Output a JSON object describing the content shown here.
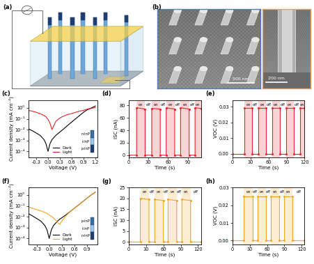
{
  "panel_a": {
    "label": "(a)"
  },
  "panel_b": {
    "label": "(b)",
    "scale_bars": [
      "500 nm",
      "200 nm"
    ]
  },
  "chart_data": [
    {
      "panel_label": "(c)",
      "type": "line",
      "log": "y",
      "xlabel": "Voltage (V)",
      "ylabel": "Current density (mA cm⁻²)",
      "x": [
        -0.5,
        -0.4,
        -0.3,
        -0.2,
        -0.1,
        -0.05,
        0.0,
        0.05,
        0.1,
        0.2,
        0.3,
        0.4,
        0.5,
        0.6,
        0.7,
        0.8,
        0.9,
        1.0,
        1.1,
        1.2
      ],
      "series": [
        {
          "name": "Dark",
          "color": "#000000",
          "values": [
            0.012,
            0.008,
            0.005,
            0.003,
            0.0012,
            0.0005,
            0.0001,
            0.0005,
            0.0012,
            0.003,
            0.006,
            0.012,
            0.025,
            0.05,
            0.1,
            0.2,
            0.4,
            0.7,
            1.0,
            1.5
          ]
        },
        {
          "name": "Light",
          "color": "#e8242a",
          "values": [
            0.6,
            0.5,
            0.4,
            0.3,
            0.2,
            0.15,
            0.09,
            0.04,
            0.01,
            0.06,
            0.12,
            0.18,
            0.25,
            0.3,
            0.4,
            0.5,
            0.6,
            0.8,
            0.9,
            1.1
          ]
        }
      ],
      "xlim": [
        -0.5,
        1.25
      ],
      "xticks": [
        -0.3,
        0.0,
        0.3,
        0.6,
        0.9,
        1.2
      ],
      "ylim": [
        3e-05,
        5
      ],
      "yticks": [
        {
          "value": 0.0001,
          "label": "10⁻⁴"
        },
        {
          "value": 0.001,
          "label": "10⁻³"
        },
        {
          "value": 0.01,
          "label": "10⁻²"
        },
        {
          "value": 0.1,
          "label": "10⁻¹"
        },
        {
          "value": 1,
          "label": "10⁰"
        }
      ],
      "legend": "lower center",
      "inset_labels": [
        "n-InP",
        "i-InP",
        "p-InP"
      ]
    },
    {
      "panel_label": "(d)",
      "type": "line",
      "marker": "circle",
      "color": "#e8242a",
      "xlabel": "Time (s)",
      "ylabel": "ISC (nA)",
      "x": [
        0,
        12,
        12,
        25,
        25,
        35,
        35,
        48,
        48,
        57,
        57,
        70,
        70,
        79,
        79,
        92,
        92,
        101,
        101,
        110
      ],
      "values": [
        0,
        0,
        76,
        74,
        0,
        0,
        75,
        74,
        0,
        0,
        76,
        74,
        0,
        0,
        76,
        74,
        0,
        0,
        76,
        75
      ],
      "on_intervals": [
        [
          12,
          25
        ],
        [
          35,
          48
        ],
        [
          57,
          70
        ],
        [
          79,
          92
        ],
        [
          101,
          110
        ]
      ],
      "on_label": "on",
      "off_label": "off",
      "xlim": [
        0,
        110
      ],
      "xticks": [
        0,
        30,
        60,
        90
      ],
      "ylim": [
        -3,
        88
      ],
      "yticks": [
        0,
        20,
        40,
        60,
        80
      ]
    },
    {
      "panel_label": "(e)",
      "type": "line",
      "marker": "circle",
      "color": "#e8242a",
      "xlabel": "Time (s)",
      "ylabel": "VOC (V)",
      "x": [
        0,
        20,
        20,
        33,
        33,
        43,
        43,
        56,
        56,
        66,
        66,
        79,
        79,
        89,
        89,
        102,
        102,
        112,
        112,
        120
      ],
      "values": [
        0,
        0,
        0.029,
        0.029,
        0,
        0,
        0.029,
        0.029,
        0,
        0,
        0.029,
        0.029,
        0,
        0,
        0.029,
        0.029,
        0,
        0,
        0.029,
        0.029
      ],
      "on_intervals": [
        [
          20,
          33
        ],
        [
          43,
          56
        ],
        [
          66,
          79
        ],
        [
          89,
          102
        ],
        [
          112,
          120
        ]
      ],
      "on_label": "on",
      "off_label": "off",
      "xlim": [
        0,
        120
      ],
      "xticks": [
        0,
        30,
        60,
        90,
        120
      ],
      "ylim": [
        -0.002,
        0.034
      ],
      "yticks": [
        {
          "value": 0.0,
          "label": "0.00"
        },
        0.01,
        0.02,
        0.03
      ]
    },
    {
      "panel_label": "(f)",
      "type": "line",
      "log": "y",
      "xlabel": "Voltage (V)",
      "ylabel": "Current density (mA cm⁻²)",
      "x": [
        -0.5,
        -0.4,
        -0.3,
        -0.2,
        -0.1,
        -0.05,
        0.0,
        0.05,
        0.1,
        0.15,
        0.2,
        0.25,
        0.3,
        0.4,
        0.5,
        0.6,
        0.7,
        0.8,
        0.9,
        1.0,
        1.1
      ],
      "series": [
        {
          "name": "Dark",
          "color": "#000000",
          "values": [
            0.02,
            0.012,
            0.007,
            0.004,
            0.0015,
            0.0006,
            0.0001,
            0.0006,
            0.0015,
            0.0025,
            0.004,
            0.006,
            0.008,
            0.015,
            0.03,
            0.06,
            0.12,
            0.25,
            0.5,
            1.0,
            1.8
          ]
        },
        {
          "name": "Light",
          "color": "#f5a623",
          "values": [
            0.08,
            0.06,
            0.045,
            0.035,
            0.025,
            0.02,
            0.015,
            0.011,
            0.008,
            0.005,
            0.003,
            0.002,
            0.004,
            0.012,
            0.03,
            0.06,
            0.12,
            0.25,
            0.5,
            1.0,
            1.8
          ]
        }
      ],
      "xlim": [
        -0.5,
        1.15
      ],
      "xticks": [
        -0.3,
        0.0,
        0.3,
        0.6,
        0.9
      ],
      "ylim": [
        3e-05,
        5
      ],
      "yticks": [
        {
          "value": 0.0001,
          "label": "10⁻⁴"
        },
        {
          "value": 0.001,
          "label": "10⁻³"
        },
        {
          "value": 0.01,
          "label": "10⁻²"
        },
        {
          "value": 0.1,
          "label": "10⁻¹"
        },
        {
          "value": 1,
          "label": "10⁰"
        }
      ],
      "legend": "lower center",
      "inset_labels": [
        "p-InP",
        "i-InP",
        "n-InP"
      ]
    },
    {
      "panel_label": "(g)",
      "type": "line",
      "marker": "circle",
      "color": "#f5a623",
      "xlabel": "Time (s)",
      "ylabel": "ISC (nA)",
      "x": [
        0,
        20,
        20,
        35,
        35,
        45,
        45,
        60,
        60,
        68,
        68,
        83,
        83,
        92,
        92,
        107,
        107,
        125
      ],
      "values": [
        0,
        0,
        20,
        19.5,
        0,
        0,
        19.5,
        19,
        0,
        0,
        19.5,
        19,
        0,
        0,
        19.5,
        19,
        0,
        0
      ],
      "on_intervals": [
        [
          20,
          35
        ],
        [
          45,
          60
        ],
        [
          68,
          83
        ],
        [
          92,
          107
        ]
      ],
      "on_label": "on",
      "off_label": "off",
      "xlim": [
        0,
        125
      ],
      "xticks": [
        0,
        30,
        60,
        90,
        120
      ],
      "ylim": [
        -1,
        25
      ],
      "yticks": [
        0,
        5,
        10,
        15,
        20,
        25
      ]
    },
    {
      "panel_label": "(h)",
      "type": "line",
      "marker": "circle",
      "color": "#f5a623",
      "xlabel": "Time (s)",
      "ylabel": "VOC (V)",
      "x": [
        0,
        20,
        20,
        35,
        35,
        44,
        44,
        58,
        58,
        67,
        67,
        81,
        81,
        90,
        90,
        104,
        104,
        125
      ],
      "values": [
        0,
        0,
        0.025,
        0.025,
        0,
        0,
        0.025,
        0.025,
        0,
        0,
        0.025,
        0.025,
        0,
        0,
        0.025,
        0.025,
        0,
        0
      ],
      "on_intervals": [
        [
          20,
          35
        ],
        [
          44,
          58
        ],
        [
          67,
          81
        ],
        [
          90,
          104
        ]
      ],
      "on_label": "on",
      "off_label": "off",
      "xlim": [
        0,
        125
      ],
      "xticks": [
        0,
        30,
        60,
        90,
        120
      ],
      "ylim": [
        -0.002,
        0.03
      ],
      "yticks": [
        {
          "value": 0.0,
          "label": "0.00"
        },
        0.01,
        0.02,
        0.03
      ]
    }
  ]
}
